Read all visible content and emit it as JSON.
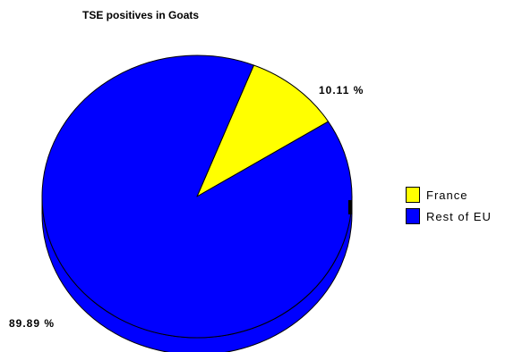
{
  "chart_data": {
    "type": "pie",
    "title": "TSE positives in Goats",
    "style": "3d",
    "categories": [
      "France",
      "Rest of EU"
    ],
    "values": [
      10.11,
      89.89
    ],
    "labels": [
      "10.11 %",
      "89.89 %"
    ],
    "colors": [
      "#ffff00",
      "#0000ff"
    ],
    "legend_position": "right"
  }
}
